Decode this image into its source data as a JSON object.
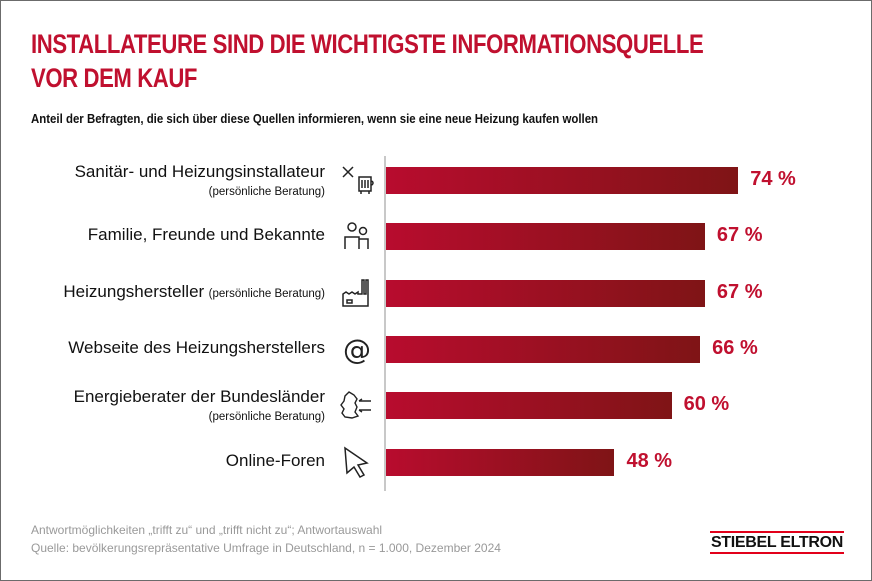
{
  "title_line1": "INSTALLATEURE SIND DIE WICHTIGSTE INFORMATIONSQUELLE",
  "title_line2": "VOR DEM KAUF",
  "subtitle": "Anteil der Befragten, die sich über diese Quellen informieren, wenn sie eine neue Heizung kaufen wollen",
  "chart_data": {
    "type": "bar",
    "orientation": "horizontal",
    "categories": [
      "Sanitär- und Heizungsinstallateur",
      "Familie, Freunde und Bekannte",
      "Heizungshersteller",
      "Webseite des Heizungsherstellers",
      "Energieberater der Bundesländer",
      "Online-Foren"
    ],
    "notes": [
      "(persönliche Beratung)",
      "",
      "(persönliche Beratung)",
      "",
      "(persönliche Beratung)",
      ""
    ],
    "values": [
      74,
      67,
      67,
      66,
      60,
      48
    ],
    "value_labels": [
      "74 %",
      "67 %",
      "67 %",
      "66 %",
      "60 %",
      "48 %"
    ],
    "icons": [
      "tools-radiator-icon",
      "people-icon",
      "factory-icon",
      "at-sign-icon",
      "germany-map-icon",
      "cursor-arrow-icon"
    ],
    "unit": "%",
    "xlim": [
      0,
      100
    ],
    "grid": false,
    "colors": {
      "bar_start": "#b80c2e",
      "bar_end": "#7f1416",
      "value": "#c0102f"
    }
  },
  "footer": {
    "line1": "Antwortmöglichkeiten „trifft zu“ und „trifft nicht zu“; Antwortauswahl",
    "line2": "Quelle: bevölkerungsrepräsentative Umfrage in Deutschland, n = 1.000, Dezember 2024"
  },
  "logo": "STIEBEL ELTRON"
}
